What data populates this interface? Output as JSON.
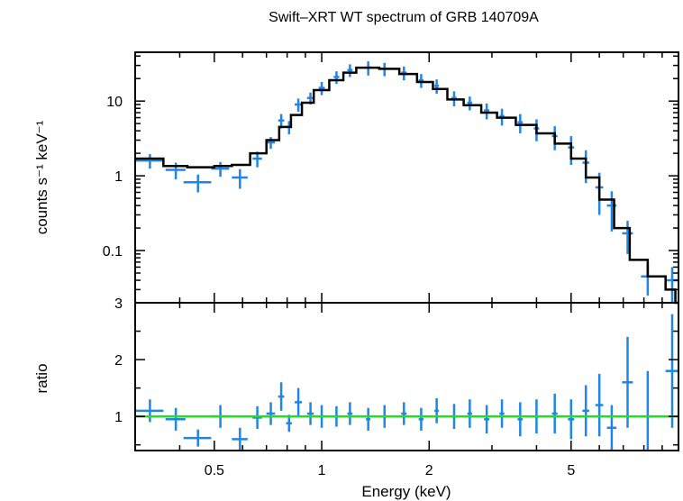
{
  "chart_data": [
    {
      "type": "scatter",
      "panel": "spectrum",
      "title": "Swift–XRT WT spectrum of GRB 140709A",
      "ylabel": "counts s⁻¹ keV⁻¹",
      "xlabel": "",
      "xscale": "log",
      "yscale": "log",
      "xlim": [
        0.3,
        10
      ],
      "ylim": [
        0.02,
        45
      ],
      "y_ticks": [
        0.1,
        1,
        10
      ],
      "y_tick_labels": [
        "0.1",
        "1",
        "10"
      ],
      "colors": {
        "data": "#1f86e6",
        "model": "#000000"
      },
      "data_points": [
        {
          "x": 0.33,
          "y": 1.6,
          "xerr": 0.03,
          "yerr": 0.35
        },
        {
          "x": 0.39,
          "y": 1.2,
          "xerr": 0.025,
          "yerr": 0.3
        },
        {
          "x": 0.45,
          "y": 0.82,
          "xerr": 0.04,
          "yerr": 0.22
        },
        {
          "x": 0.52,
          "y": 1.25,
          "xerr": 0.03,
          "yerr": 0.28
        },
        {
          "x": 0.59,
          "y": 0.95,
          "xerr": 0.03,
          "yerr": 0.28
        },
        {
          "x": 0.66,
          "y": 1.7,
          "xerr": 0.02,
          "yerr": 0.4
        },
        {
          "x": 0.72,
          "y": 2.8,
          "xerr": 0.02,
          "yerr": 0.5
        },
        {
          "x": 0.77,
          "y": 5.5,
          "xerr": 0.015,
          "yerr": 1.2
        },
        {
          "x": 0.81,
          "y": 4.5,
          "xerr": 0.015,
          "yerr": 0.9
        },
        {
          "x": 0.86,
          "y": 9.0,
          "xerr": 0.02,
          "yerr": 1.8
        },
        {
          "x": 0.93,
          "y": 11.0,
          "xerr": 0.02,
          "yerr": 2.0
        },
        {
          "x": 1.0,
          "y": 15.0,
          "xerr": 0.02,
          "yerr": 3.0
        },
        {
          "x": 1.1,
          "y": 21.0,
          "xerr": 0.02,
          "yerr": 4.0
        },
        {
          "x": 1.2,
          "y": 26.0,
          "xerr": 0.02,
          "yerr": 5.0
        },
        {
          "x": 1.35,
          "y": 28.0,
          "xerr": 0.02,
          "yerr": 6.0
        },
        {
          "x": 1.5,
          "y": 27.0,
          "xerr": 0.03,
          "yerr": 5.5
        },
        {
          "x": 1.7,
          "y": 24.0,
          "xerr": 0.03,
          "yerr": 5.0
        },
        {
          "x": 1.9,
          "y": 19.0,
          "xerr": 0.03,
          "yerr": 4.0
        },
        {
          "x": 2.1,
          "y": 16.0,
          "xerr": 0.03,
          "yerr": 3.5
        },
        {
          "x": 2.35,
          "y": 11.0,
          "xerr": 0.04,
          "yerr": 2.5
        },
        {
          "x": 2.6,
          "y": 9.5,
          "xerr": 0.04,
          "yerr": 2.0
        },
        {
          "x": 2.9,
          "y": 7.5,
          "xerr": 0.05,
          "yerr": 1.8
        },
        {
          "x": 3.2,
          "y": 6.3,
          "xerr": 0.05,
          "yerr": 1.6
        },
        {
          "x": 3.6,
          "y": 5.2,
          "xerr": 0.06,
          "yerr": 1.5
        },
        {
          "x": 4.0,
          "y": 4.3,
          "xerr": 0.07,
          "yerr": 1.4
        },
        {
          "x": 4.5,
          "y": 3.4,
          "xerr": 0.08,
          "yerr": 1.2
        },
        {
          "x": 5.0,
          "y": 2.4,
          "xerr": 0.1,
          "yerr": 1.0
        },
        {
          "x": 5.5,
          "y": 1.5,
          "xerr": 0.12,
          "yerr": 0.7
        },
        {
          "x": 6.0,
          "y": 0.7,
          "xerr": 0.15,
          "yerr": 0.4
        },
        {
          "x": 6.5,
          "y": 0.4,
          "xerr": 0.2,
          "yerr": 0.22
        },
        {
          "x": 7.2,
          "y": 0.17,
          "xerr": 0.25,
          "yerr": 0.08
        },
        {
          "x": 8.2,
          "y": 0.045,
          "xerr": 0.35,
          "yerr": 0.02
        },
        {
          "x": 9.6,
          "y": 0.04,
          "xerr": 0.4,
          "yerr": 0.02
        }
      ],
      "model_steps": [
        {
          "x0": 0.3,
          "x1": 0.36,
          "y": 1.7
        },
        {
          "x0": 0.36,
          "x1": 0.42,
          "y": 1.35
        },
        {
          "x0": 0.42,
          "x1": 0.5,
          "y": 1.3
        },
        {
          "x0": 0.5,
          "x1": 0.56,
          "y": 1.35
        },
        {
          "x0": 0.56,
          "x1": 0.63,
          "y": 1.4
        },
        {
          "x0": 0.63,
          "x1": 0.7,
          "y": 2.0
        },
        {
          "x0": 0.7,
          "x1": 0.76,
          "y": 3.0
        },
        {
          "x0": 0.76,
          "x1": 0.82,
          "y": 4.5
        },
        {
          "x0": 0.82,
          "x1": 0.88,
          "y": 6.5
        },
        {
          "x0": 0.88,
          "x1": 0.95,
          "y": 9.5
        },
        {
          "x0": 0.95,
          "x1": 1.05,
          "y": 14.0
        },
        {
          "x0": 1.05,
          "x1": 1.15,
          "y": 19.0
        },
        {
          "x0": 1.15,
          "x1": 1.25,
          "y": 24.0
        },
        {
          "x0": 1.25,
          "x1": 1.45,
          "y": 28.0
        },
        {
          "x0": 1.45,
          "x1": 1.65,
          "y": 27.0
        },
        {
          "x0": 1.65,
          "x1": 1.85,
          "y": 23.0
        },
        {
          "x0": 1.85,
          "x1": 2.05,
          "y": 18.0
        },
        {
          "x0": 2.05,
          "x1": 2.25,
          "y": 14.5
        },
        {
          "x0": 2.25,
          "x1": 2.5,
          "y": 10.5
        },
        {
          "x0": 2.5,
          "x1": 2.8,
          "y": 8.8
        },
        {
          "x0": 2.8,
          "x1": 3.1,
          "y": 7.0
        },
        {
          "x0": 3.1,
          "x1": 3.5,
          "y": 6.0
        },
        {
          "x0": 3.5,
          "x1": 4.0,
          "y": 4.8
        },
        {
          "x0": 4.0,
          "x1": 4.5,
          "y": 3.7
        },
        {
          "x0": 4.5,
          "x1": 5.0,
          "y": 2.7
        },
        {
          "x0": 5.0,
          "x1": 5.5,
          "y": 1.7
        },
        {
          "x0": 5.5,
          "x1": 6.0,
          "y": 0.95
        },
        {
          "x0": 6.0,
          "x1": 6.6,
          "y": 0.48
        },
        {
          "x0": 6.6,
          "x1": 7.3,
          "y": 0.2
        },
        {
          "x0": 7.3,
          "x1": 8.2,
          "y": 0.075
        },
        {
          "x0": 8.2,
          "x1": 9.2,
          "y": 0.045
        },
        {
          "x0": 9.2,
          "x1": 9.8,
          "y": 0.03
        },
        {
          "x0": 9.8,
          "x1": 10.0,
          "y": 0.02
        }
      ]
    },
    {
      "type": "scatter",
      "panel": "ratio",
      "xlabel": "Energy (keV)",
      "ylabel": "ratio",
      "xscale": "log",
      "xlim": [
        0.3,
        10
      ],
      "ylim": [
        0.4,
        3.0
      ],
      "x_ticks": [
        0.5,
        1,
        2,
        5
      ],
      "x_tick_labels": [
        "0.5",
        "1",
        "2",
        "5"
      ],
      "y_ticks": [
        1,
        2,
        3
      ],
      "y_tick_labels": [
        "1",
        "2",
        "3"
      ],
      "reference_line": 1,
      "colors": {
        "data": "#1f86e6",
        "reference": "#22dd22"
      },
      "data_points": [
        {
          "x": 0.33,
          "y": 1.1,
          "xerr": 0.03,
          "yerr": 0.2
        },
        {
          "x": 0.39,
          "y": 0.95,
          "xerr": 0.025,
          "yerr": 0.2
        },
        {
          "x": 0.45,
          "y": 0.62,
          "xerr": 0.04,
          "yerr": 0.15
        },
        {
          "x": 0.52,
          "y": 1.0,
          "xerr": 0.03,
          "yerr": 0.2
        },
        {
          "x": 0.59,
          "y": 0.6,
          "xerr": 0.03,
          "yerr": 0.2
        },
        {
          "x": 0.66,
          "y": 0.98,
          "xerr": 0.02,
          "yerr": 0.2
        },
        {
          "x": 0.72,
          "y": 1.05,
          "xerr": 0.02,
          "yerr": 0.2
        },
        {
          "x": 0.77,
          "y": 1.35,
          "xerr": 0.015,
          "yerr": 0.25
        },
        {
          "x": 0.81,
          "y": 0.88,
          "xerr": 0.015,
          "yerr": 0.15
        },
        {
          "x": 0.86,
          "y": 1.25,
          "xerr": 0.02,
          "yerr": 0.25
        },
        {
          "x": 0.93,
          "y": 1.05,
          "xerr": 0.02,
          "yerr": 0.2
        },
        {
          "x": 1.0,
          "y": 1.0,
          "xerr": 0.02,
          "yerr": 0.2
        },
        {
          "x": 1.1,
          "y": 1.0,
          "xerr": 0.02,
          "yerr": 0.18
        },
        {
          "x": 1.2,
          "y": 1.05,
          "xerr": 0.02,
          "yerr": 0.2
        },
        {
          "x": 1.35,
          "y": 0.95,
          "xerr": 0.02,
          "yerr": 0.2
        },
        {
          "x": 1.5,
          "y": 1.0,
          "xerr": 0.03,
          "yerr": 0.2
        },
        {
          "x": 1.7,
          "y": 1.05,
          "xerr": 0.03,
          "yerr": 0.2
        },
        {
          "x": 1.9,
          "y": 0.95,
          "xerr": 0.03,
          "yerr": 0.2
        },
        {
          "x": 2.1,
          "y": 1.1,
          "xerr": 0.03,
          "yerr": 0.22
        },
        {
          "x": 2.35,
          "y": 1.0,
          "xerr": 0.04,
          "yerr": 0.22
        },
        {
          "x": 2.6,
          "y": 1.05,
          "xerr": 0.04,
          "yerr": 0.25
        },
        {
          "x": 2.9,
          "y": 0.95,
          "xerr": 0.05,
          "yerr": 0.25
        },
        {
          "x": 3.2,
          "y": 1.05,
          "xerr": 0.05,
          "yerr": 0.25
        },
        {
          "x": 3.6,
          "y": 0.95,
          "xerr": 0.06,
          "yerr": 0.3
        },
        {
          "x": 4.0,
          "y": 1.0,
          "xerr": 0.07,
          "yerr": 0.3
        },
        {
          "x": 4.5,
          "y": 1.05,
          "xerr": 0.08,
          "yerr": 0.35
        },
        {
          "x": 5.0,
          "y": 0.95,
          "xerr": 0.1,
          "yerr": 0.35
        },
        {
          "x": 5.5,
          "y": 1.1,
          "xerr": 0.12,
          "yerr": 0.45
        },
        {
          "x": 6.0,
          "y": 1.2,
          "xerr": 0.15,
          "yerr": 0.55
        },
        {
          "x": 6.5,
          "y": 0.8,
          "xerr": 0.2,
          "yerr": 0.4
        },
        {
          "x": 7.2,
          "y": 1.6,
          "xerr": 0.25,
          "yerr": 0.8
        },
        {
          "x": 8.2,
          "y": 1.0,
          "xerr": 0.35,
          "yerr": 0.8
        },
        {
          "x": 9.6,
          "y": 1.8,
          "xerr": 0.4,
          "yerr": 1.0
        }
      ]
    }
  ]
}
